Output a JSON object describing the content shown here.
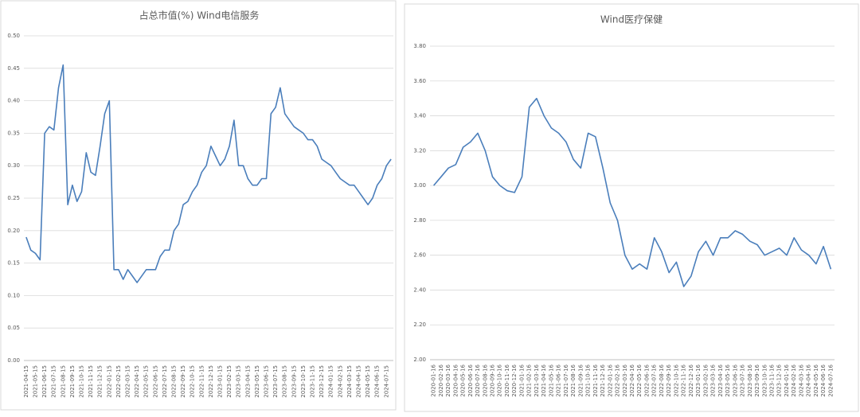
{
  "chart_data": [
    {
      "type": "line",
      "title": "占总市值(%) Wind电信服务",
      "categories": [
        "2021-04-15",
        null,
        "2021-05-15",
        null,
        "2021-06-15",
        null,
        "2021-07-15",
        null,
        "2021-08-15",
        null,
        "2021-09-15",
        null,
        "2021-10-15",
        null,
        "2021-11-15",
        null,
        "2021-12-15",
        null,
        "2022-01-15",
        null,
        "2022-02-15",
        null,
        "2022-03-15",
        null,
        "2022-04-15",
        null,
        "2022-05-15",
        null,
        "2022-06-15",
        null,
        "2022-07-15",
        null,
        "2022-08-15",
        null,
        "2022-09-15",
        null,
        "2022-10-15",
        null,
        "2022-11-15",
        null,
        "2022-12-15",
        null,
        "2023-01-15",
        null,
        "2023-02-15",
        null,
        "2023-03-15",
        null,
        "2023-04-15",
        null,
        "2023-05-15",
        null,
        "2023-06-15",
        null,
        "2023-07-15",
        null,
        "2023-08-15",
        null,
        "2023-09-15",
        null,
        "2023-10-15",
        null,
        "2023-11-15",
        null,
        "2023-12-15",
        null,
        "2024-01-15",
        null,
        "2024-02-15",
        null,
        "2024-03-15",
        null,
        "2024-04-15",
        null,
        "2024-05-15",
        null,
        "2024-06-15",
        null,
        "2024-07-15",
        null
      ],
      "series": [
        {
          "name": "Wind电信服务",
          "color": "#4a7ebb",
          "values": [
            0.19,
            0.17,
            0.165,
            0.155,
            0.35,
            0.36,
            0.355,
            0.42,
            0.455,
            0.24,
            0.27,
            0.245,
            0.26,
            0.32,
            0.29,
            0.285,
            0.33,
            0.38,
            0.4,
            0.14,
            0.14,
            0.125,
            0.14,
            0.13,
            0.12,
            0.13,
            0.14,
            0.14,
            0.14,
            0.16,
            0.17,
            0.17,
            0.2,
            0.21,
            0.24,
            0.245,
            0.26,
            0.27,
            0.29,
            0.3,
            0.33,
            0.315,
            0.3,
            0.31,
            0.33,
            0.37,
            0.3,
            0.3,
            0.28,
            0.27,
            0.27,
            0.28,
            0.28,
            0.38,
            0.39,
            0.42,
            0.38,
            0.37,
            0.36,
            0.355,
            0.35,
            0.34,
            0.34,
            0.33,
            0.31,
            0.305,
            0.3,
            0.29,
            0.28,
            0.275,
            0.27,
            0.27,
            0.26,
            0.25,
            0.24,
            0.25,
            0.27,
            0.28,
            0.3,
            0.31
          ]
        }
      ],
      "ylim": [
        0,
        0.5
      ],
      "yticks": [
        {
          "value": 0,
          "label": "0.00"
        },
        {
          "value": 0.05,
          "label": "0.05"
        },
        {
          "value": 0.1,
          "label": "0.10"
        },
        {
          "value": 0.15,
          "label": "0.15"
        },
        {
          "value": 0.2,
          "label": "0.20"
        },
        {
          "value": 0.25,
          "label": "0.25"
        },
        {
          "value": 0.3,
          "label": "0.30"
        },
        {
          "value": 0.35,
          "label": "0.35"
        },
        {
          "value": 0.4,
          "label": "0.40"
        },
        {
          "value": 0.45,
          "label": "0.45"
        },
        {
          "value": 0.5,
          "label": "0.50"
        }
      ],
      "grid": true
    },
    {
      "type": "line",
      "title": "Wind医疗保健",
      "categories": [
        "2020-01-16",
        "2020-02-16",
        "2020-03-16",
        "2020-04-16",
        "2020-05-16",
        "2020-06-16",
        "2020-07-16",
        "2020-08-16",
        "2020-09-16",
        "2020-10-16",
        "2020-11-16",
        "2020-12-16",
        "2021-01-16",
        "2021-02-16",
        "2021-03-16",
        "2021-04-16",
        "2021-05-16",
        "2021-06-16",
        "2021-07-16",
        "2021-08-16",
        "2021-09-16",
        "2021-10-16",
        "2021-11-16",
        "2021-12-16",
        "2022-01-16",
        "2022-02-16",
        "2022-03-16",
        "2022-04-16",
        "2022-05-16",
        "2022-06-16",
        "2022-07-16",
        "2022-08-16",
        "2022-09-16",
        "2022-10-16",
        "2022-11-16",
        "2022-12-16",
        "2023-01-16",
        "2023-02-16",
        "2023-03-16",
        "2023-04-16",
        "2023-05-16",
        "2023-06-16",
        "2023-07-16",
        "2023-08-16",
        "2023-09-16",
        "2023-10-16",
        "2023-11-16",
        "2023-12-16",
        "2024-01-16",
        "2024-02-16",
        "2024-03-16",
        "2024-04-16",
        "2024-05-16",
        "2024-06-16",
        "2024-07-16"
      ],
      "series": [
        {
          "name": "Wind医疗保健",
          "color": "#4a7ebb",
          "values": [
            3.0,
            3.05,
            3.1,
            3.12,
            3.22,
            3.25,
            3.3,
            3.2,
            3.05,
            3.0,
            2.97,
            2.96,
            3.05,
            3.45,
            3.5,
            3.4,
            3.33,
            3.3,
            3.25,
            3.15,
            3.1,
            3.3,
            3.28,
            3.1,
            2.9,
            2.8,
            2.6,
            2.52,
            2.55,
            2.52,
            2.7,
            2.62,
            2.5,
            2.56,
            2.42,
            2.48,
            2.62,
            2.68,
            2.6,
            2.7,
            2.7,
            2.74,
            2.72,
            2.68,
            2.66,
            2.6,
            2.62,
            2.64,
            2.6,
            2.7,
            2.63,
            2.6,
            2.55,
            2.65,
            2.52
          ]
        }
      ],
      "ylim": [
        2.0,
        3.8
      ],
      "yticks": [
        {
          "value": 2.0,
          "label": "2.00"
        },
        {
          "value": 2.2,
          "label": "2.20"
        },
        {
          "value": 2.4,
          "label": "2.40"
        },
        {
          "value": 2.6,
          "label": "2.60"
        },
        {
          "value": 2.8,
          "label": "2.80"
        },
        {
          "value": 3.0,
          "label": "3.00"
        },
        {
          "value": 3.2,
          "label": "3.20"
        },
        {
          "value": 3.4,
          "label": "3.40"
        },
        {
          "value": 3.6,
          "label": "3.60"
        },
        {
          "value": 3.8,
          "label": "3.80"
        }
      ],
      "grid": true
    }
  ]
}
